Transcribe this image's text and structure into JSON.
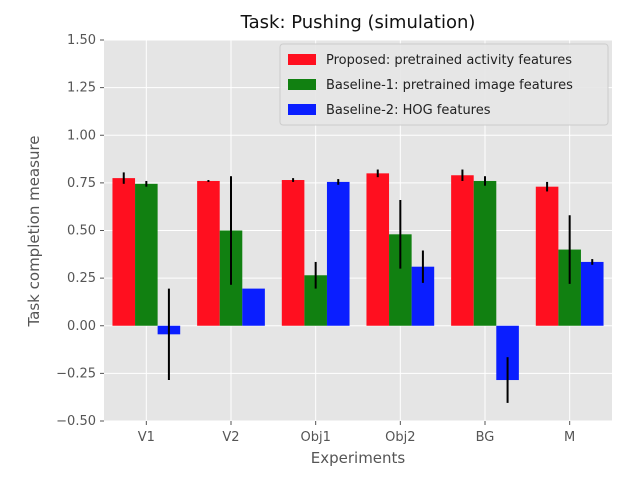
{
  "chart_data": {
    "type": "bar",
    "title": "Task: Pushing (simulation)",
    "xlabel": "Experiments",
    "ylabel": "Task completion measure",
    "ylim": [
      -0.5,
      1.5
    ],
    "yticks": [
      -0.5,
      -0.25,
      0.0,
      0.25,
      0.5,
      0.75,
      1.0,
      1.25,
      1.5
    ],
    "ytick_labels": [
      "−0.50",
      "−0.25",
      "0.00",
      "0.25",
      "0.50",
      "0.75",
      "1.00",
      "1.25",
      "1.50"
    ],
    "categories": [
      "V1",
      "V2",
      "Obj1",
      "Obj2",
      "BG",
      "M"
    ],
    "grid": true,
    "legend_position": "top-right",
    "series": [
      {
        "name": "Proposed: pretrained activity features",
        "color": "#ff0f1f",
        "values": [
          0.775,
          0.76,
          0.765,
          0.8,
          0.79,
          0.73
        ],
        "errors": [
          0.03,
          0.005,
          0.01,
          0.02,
          0.03,
          0.025
        ]
      },
      {
        "name": "Baseline-1: pretrained image features",
        "color": "#118011",
        "values": [
          0.745,
          0.5,
          0.265,
          0.48,
          0.76,
          0.4
        ],
        "errors": [
          0.015,
          0.285,
          0.07,
          0.18,
          0.025,
          0.18
        ]
      },
      {
        "name": "Baseline-2: HOG features",
        "color": "#0a1eff",
        "values": [
          -0.045,
          0.195,
          0.755,
          0.31,
          -0.285,
          0.335
        ],
        "errors": [
          0.24,
          0.0,
          0.015,
          0.085,
          0.12,
          0.015
        ]
      }
    ]
  }
}
